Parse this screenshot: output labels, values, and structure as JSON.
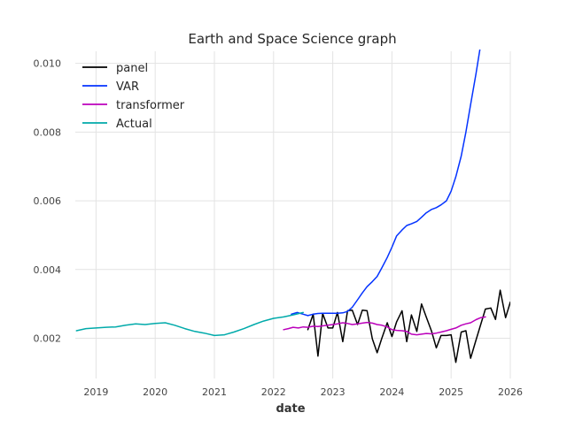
{
  "chart_data": {
    "type": "line",
    "title": "Earth and Space Science graph",
    "xlabel": "date",
    "ylabel": "",
    "xlim": [
      2018.65,
      2026.0
    ],
    "ylim": [
      0.00083,
      0.01035
    ],
    "x_ticks": [
      2019,
      2020,
      2021,
      2022,
      2023,
      2024,
      2025,
      2026
    ],
    "y_ticks": [
      0.002,
      0.004,
      0.006,
      0.008,
      0.01
    ],
    "y_tick_labels": [
      "0.002",
      "0.004",
      "0.006",
      "0.008",
      "0.010"
    ],
    "grid": true,
    "legend_position": "top-left",
    "series": [
      {
        "name": "panel",
        "color": "#000000",
        "x": [
          2022.58,
          2022.67,
          2022.75,
          2022.83,
          2022.92,
          2023.0,
          2023.08,
          2023.17,
          2023.25,
          2023.33,
          2023.42,
          2023.5,
          2023.58,
          2023.67,
          2023.75,
          2023.83,
          2023.92,
          2024.0,
          2024.08,
          2024.17,
          2024.25,
          2024.33,
          2024.42,
          2024.5,
          2024.58,
          2024.67,
          2024.75,
          2024.83,
          2024.92,
          2025.0,
          2025.08,
          2025.17,
          2025.25,
          2025.33,
          2025.42,
          2025.5,
          2025.58,
          2025.67,
          2025.75,
          2025.83,
          2025.92,
          2026.0
        ],
        "values": [
          0.00225,
          0.0027,
          0.00148,
          0.00272,
          0.0023,
          0.0023,
          0.00275,
          0.0019,
          0.0028,
          0.00282,
          0.0024,
          0.00282,
          0.0028,
          0.00198,
          0.00158,
          0.002,
          0.00245,
          0.00205,
          0.00248,
          0.0028,
          0.0019,
          0.00268,
          0.0022,
          0.003,
          0.00262,
          0.0022,
          0.00172,
          0.00208,
          0.00208,
          0.0021,
          0.0013,
          0.00218,
          0.00222,
          0.00142,
          0.00195,
          0.0024,
          0.00285,
          0.00288,
          0.00255,
          0.0034,
          0.0026,
          0.00305
        ]
      },
      {
        "name": "VAR",
        "color": "#0433ff",
        "x": [
          2022.3,
          2022.4,
          2022.5,
          2022.58,
          2022.67,
          2022.75,
          2022.83,
          2022.92,
          2023.0,
          2023.08,
          2023.17,
          2023.25,
          2023.33,
          2023.42,
          2023.5,
          2023.58,
          2023.67,
          2023.75,
          2023.83,
          2023.92,
          2024.0,
          2024.08,
          2024.17,
          2024.25,
          2024.33,
          2024.42,
          2024.5,
          2024.58,
          2024.67,
          2024.75,
          2024.83,
          2024.92,
          2025.0,
          2025.08,
          2025.17,
          2025.25,
          2025.33,
          2025.42,
          2025.5,
          2025.58
        ],
        "values": [
          0.0027,
          0.00275,
          0.0027,
          0.00266,
          0.0027,
          0.00272,
          0.00273,
          0.00273,
          0.00273,
          0.00273,
          0.00274,
          0.00278,
          0.0029,
          0.00312,
          0.00332,
          0.0035,
          0.00365,
          0.0038,
          0.00405,
          0.00435,
          0.00465,
          0.00498,
          0.00515,
          0.00528,
          0.00533,
          0.0054,
          0.00552,
          0.00565,
          0.00575,
          0.0058,
          0.00588,
          0.006,
          0.00628,
          0.0067,
          0.0073,
          0.008,
          0.0088,
          0.0097,
          0.01055,
          0.01155
        ]
      },
      {
        "name": "transformer",
        "color": "#bb00bb",
        "x": [
          2022.17,
          2022.25,
          2022.33,
          2022.42,
          2022.5,
          2022.58,
          2022.67,
          2022.75,
          2022.83,
          2022.92,
          2023.0,
          2023.08,
          2023.17,
          2023.25,
          2023.33,
          2023.42,
          2023.5,
          2023.58,
          2023.67,
          2023.75,
          2023.83,
          2023.92,
          2024.0,
          2024.08,
          2024.17,
          2024.25,
          2024.33,
          2024.42,
          2024.5,
          2024.58,
          2024.67,
          2024.75,
          2024.83,
          2024.92,
          2025.0,
          2025.08,
          2025.17,
          2025.25,
          2025.33,
          2025.42,
          2025.5,
          2025.58
        ],
        "values": [
          0.00225,
          0.00228,
          0.00232,
          0.0023,
          0.00233,
          0.00232,
          0.00235,
          0.00234,
          0.00236,
          0.00238,
          0.0024,
          0.00242,
          0.00245,
          0.00243,
          0.0024,
          0.00242,
          0.00244,
          0.00246,
          0.00244,
          0.0024,
          0.00238,
          0.00233,
          0.00225,
          0.00223,
          0.00222,
          0.0022,
          0.00212,
          0.0021,
          0.00212,
          0.00214,
          0.00213,
          0.00215,
          0.00218,
          0.00222,
          0.00226,
          0.0023,
          0.00238,
          0.00242,
          0.00245,
          0.00254,
          0.0026,
          0.00262
        ]
      },
      {
        "name": "Actual",
        "color": "#00aaaa",
        "x": [
          2018.67,
          2018.83,
          2019.0,
          2019.17,
          2019.33,
          2019.5,
          2019.67,
          2019.83,
          2020.0,
          2020.17,
          2020.33,
          2020.5,
          2020.67,
          2020.83,
          2021.0,
          2021.17,
          2021.33,
          2021.5,
          2021.67,
          2021.83,
          2022.0,
          2022.17,
          2022.33,
          2022.5
        ],
        "values": [
          0.00222,
          0.00228,
          0.0023,
          0.00232,
          0.00233,
          0.00238,
          0.00242,
          0.0024,
          0.00243,
          0.00245,
          0.00238,
          0.00228,
          0.0022,
          0.00215,
          0.00208,
          0.0021,
          0.00218,
          0.00228,
          0.0024,
          0.0025,
          0.00258,
          0.00262,
          0.00268,
          0.00275
        ]
      }
    ]
  }
}
